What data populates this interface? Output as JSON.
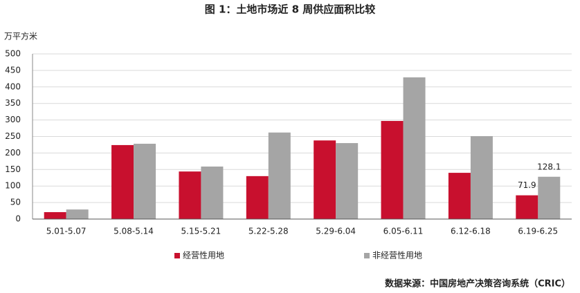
{
  "chart_data": {
    "type": "bar",
    "title": "图 1：土地市场近 8 周供应面积比较",
    "y_label": "万平方米",
    "categories": [
      "5.01-5.07",
      "5.08-5.14",
      "5.15-5.21",
      "5.22-5.28",
      "5.29-6.04",
      "6.05-6.11",
      "6.12-6.18",
      "6.19-6.25"
    ],
    "series": [
      {
        "name": "经营性用地",
        "color": "#c8102e",
        "values": [
          21,
          224,
          144,
          130,
          238,
          297,
          140,
          71.9
        ],
        "value_labels": [
          null,
          null,
          null,
          null,
          null,
          null,
          null,
          "71.9"
        ]
      },
      {
        "name": "非经营性用地",
        "color": "#a5a5a5",
        "values": [
          29,
          228,
          159,
          262,
          230,
          429,
          251,
          128.1
        ],
        "value_labels": [
          null,
          null,
          null,
          null,
          null,
          null,
          null,
          "128.1"
        ]
      }
    ],
    "ylim": [
      0,
      500
    ],
    "yticks": [
      0,
      50,
      100,
      150,
      200,
      250,
      300,
      350,
      400,
      450,
      500
    ],
    "grid": true,
    "legend": "bottom",
    "source": "数据来源：中国房地产决策咨询系统（CRIC）"
  }
}
